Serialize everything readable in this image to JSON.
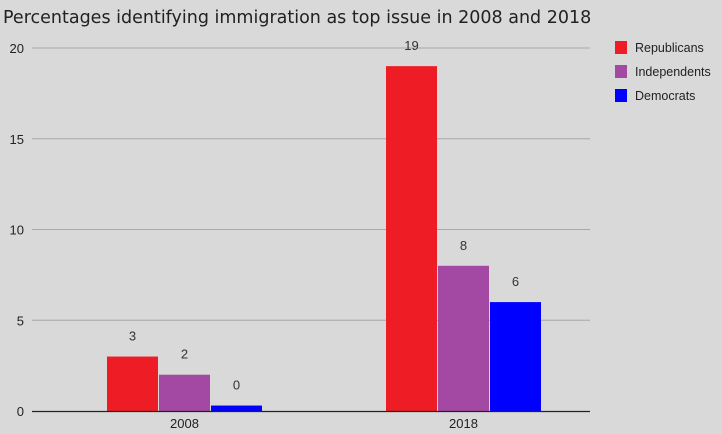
{
  "chart_data": {
    "type": "bar",
    "title": "Percentages identifying immigration as top issue in 2008 and 2018",
    "xlabel": "",
    "ylabel": "",
    "categories": [
      "2008",
      "2018"
    ],
    "series": [
      {
        "name": "Republicans",
        "color": "#ee1c25",
        "values": [
          3,
          19
        ],
        "labels": [
          "3",
          "19"
        ]
      },
      {
        "name": "Independents",
        "color": "#a349a4",
        "values": [
          2,
          8
        ],
        "labels": [
          "2",
          "8"
        ]
      },
      {
        "name": "Democrats",
        "color": "#0000ff",
        "values": [
          0.3,
          6
        ],
        "labels": [
          "0",
          "6"
        ]
      }
    ],
    "ylim": [
      0,
      20
    ],
    "yticks": [
      0,
      5,
      10,
      15,
      20
    ],
    "grid": true,
    "legend_position": "right-top"
  }
}
